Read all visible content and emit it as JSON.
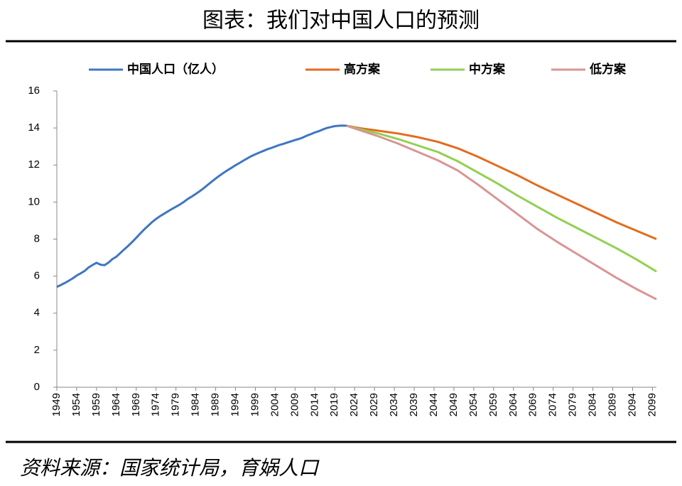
{
  "chart_data": {
    "type": "line",
    "title": "图表：我们对中国人口的预测",
    "source": "资料来源：国家统计局，育娲人口",
    "xlim": [
      1949,
      2100
    ],
    "xticks": [
      1949,
      1954,
      1959,
      1964,
      1969,
      1974,
      1979,
      1984,
      1989,
      1994,
      1999,
      2004,
      2009,
      2014,
      2019,
      2024,
      2029,
      2034,
      2039,
      2044,
      2049,
      2054,
      2059,
      2064,
      2069,
      2074,
      2079,
      2084,
      2089,
      2094,
      2099
    ],
    "ylim": [
      0,
      16
    ],
    "yticks": [
      0,
      2,
      4,
      6,
      8,
      10,
      12,
      14,
      16
    ],
    "grid": false,
    "legend": "top",
    "series": [
      {
        "name": "中国人口（亿人）",
        "color": "#3f76c2",
        "x": [
          1949,
          1950,
          1951,
          1952,
          1953,
          1954,
          1955,
          1956,
          1957,
          1958,
          1959,
          1960,
          1961,
          1962,
          1963,
          1964,
          1965,
          1966,
          1967,
          1968,
          1969,
          1970,
          1971,
          1972,
          1973,
          1974,
          1975,
          1976,
          1977,
          1978,
          1979,
          1980,
          1981,
          1982,
          1983,
          1984,
          1985,
          1986,
          1987,
          1988,
          1989,
          1990,
          1991,
          1992,
          1993,
          1994,
          1995,
          1996,
          1997,
          1998,
          1999,
          2000,
          2001,
          2002,
          2003,
          2004,
          2005,
          2006,
          2007,
          2008,
          2009,
          2010,
          2011,
          2012,
          2013,
          2014,
          2015,
          2016,
          2017,
          2018,
          2019,
          2020,
          2021,
          2022
        ],
        "values": [
          5.42,
          5.52,
          5.63,
          5.75,
          5.88,
          6.03,
          6.15,
          6.28,
          6.47,
          6.6,
          6.72,
          6.62,
          6.59,
          6.73,
          6.92,
          7.05,
          7.25,
          7.45,
          7.64,
          7.85,
          8.07,
          8.3,
          8.52,
          8.72,
          8.92,
          9.09,
          9.24,
          9.37,
          9.5,
          9.63,
          9.75,
          9.87,
          10.01,
          10.17,
          10.3,
          10.44,
          10.59,
          10.75,
          10.93,
          11.1,
          11.27,
          11.43,
          11.58,
          11.72,
          11.85,
          11.99,
          12.11,
          12.24,
          12.36,
          12.48,
          12.58,
          12.67,
          12.76,
          12.85,
          12.92,
          13.0,
          13.08,
          13.14,
          13.21,
          13.28,
          13.35,
          13.41,
          13.49,
          13.59,
          13.67,
          13.76,
          13.83,
          13.92,
          14.0,
          14.05,
          14.1,
          14.12,
          14.13,
          14.12
        ]
      },
      {
        "name": "高方案",
        "color": "#e36c1f",
        "x": [
          2022,
          2025,
          2030,
          2035,
          2040,
          2045,
          2050,
          2055,
          2060,
          2065,
          2070,
          2075,
          2080,
          2085,
          2090,
          2095,
          2100
        ],
        "values": [
          14.12,
          14.0,
          13.85,
          13.7,
          13.5,
          13.25,
          12.9,
          12.45,
          11.95,
          11.45,
          10.9,
          10.4,
          9.9,
          9.4,
          8.9,
          8.45,
          8.0
        ]
      },
      {
        "name": "中方案",
        "color": "#92d050",
        "x": [
          2022,
          2025,
          2030,
          2035,
          2040,
          2045,
          2050,
          2055,
          2060,
          2065,
          2070,
          2075,
          2080,
          2085,
          2090,
          2095,
          2100
        ],
        "values": [
          14.12,
          13.95,
          13.7,
          13.4,
          13.05,
          12.7,
          12.2,
          11.6,
          11.0,
          10.35,
          9.75,
          9.15,
          8.6,
          8.05,
          7.5,
          6.9,
          6.25
        ]
      },
      {
        "name": "低方案",
        "color": "#d99594",
        "x": [
          2022,
          2025,
          2030,
          2035,
          2040,
          2045,
          2050,
          2055,
          2060,
          2065,
          2070,
          2075,
          2080,
          2085,
          2090,
          2095,
          2100
        ],
        "values": [
          14.12,
          13.9,
          13.55,
          13.15,
          12.7,
          12.25,
          11.7,
          10.95,
          10.15,
          9.35,
          8.55,
          7.85,
          7.2,
          6.55,
          5.9,
          5.3,
          4.75
        ]
      }
    ]
  }
}
